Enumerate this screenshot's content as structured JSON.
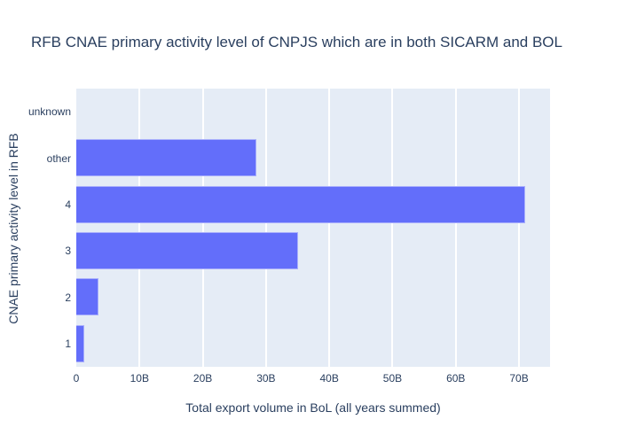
{
  "chart_data": {
    "type": "bar",
    "orientation": "horizontal",
    "title": "RFB CNAE primary activity level of CNPJS which are in both SICARM and BOL",
    "xlabel": "Total export volume in BoL (all years summed)",
    "ylabel": "CNAE primary activity level in RFB",
    "categories": [
      "unknown",
      "other",
      "4",
      "3",
      "2",
      "1"
    ],
    "values_billions": [
      0,
      28.5,
      71,
      35.1,
      3.5,
      1.3
    ],
    "x_ticks": [
      {
        "label": "0",
        "value": 0
      },
      {
        "label": "10B",
        "value": 10
      },
      {
        "label": "20B",
        "value": 20
      },
      {
        "label": "30B",
        "value": 30
      },
      {
        "label": "40B",
        "value": 40
      },
      {
        "label": "50B",
        "value": 50
      },
      {
        "label": "60B",
        "value": 60
      },
      {
        "label": "70B",
        "value": 70
      }
    ],
    "xlim_billions": [
      0,
      74.9
    ],
    "grid": "vertical",
    "legend": "none",
    "colors": {
      "bar": "#636EFA",
      "plot_background": "#E5ECF6",
      "gridline": "#FFFFFF",
      "text": "#2a3f5f",
      "paper_background": "#FFFFFF"
    }
  }
}
